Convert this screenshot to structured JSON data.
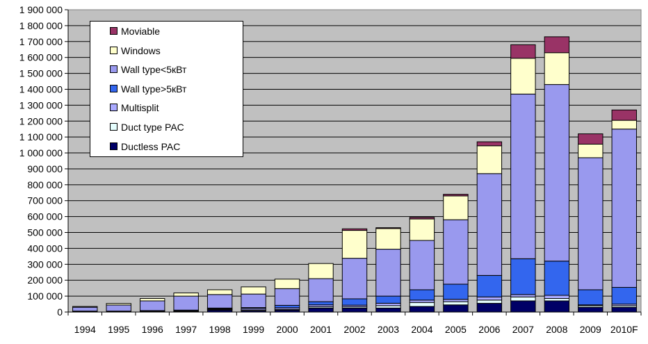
{
  "chart_data": {
    "type": "bar",
    "stacked": true,
    "categories": [
      "1994",
      "1995",
      "1996",
      "1997",
      "1998",
      "1999",
      "2000",
      "2001",
      "2002",
      "2003",
      "2004",
      "2005",
      "2006",
      "2007",
      "2008",
      "2009",
      "2010F"
    ],
    "ylim": [
      0,
      1900000
    ],
    "yticks": [
      "0",
      "100 000",
      "200 000",
      "300 000",
      "400 000",
      "500 000",
      "600 000",
      "700 000",
      "800 000",
      "900 000",
      "1 000 000",
      "1 100 000",
      "1 200 000",
      "1 300 000",
      "1 400 000",
      "1 500 000",
      "1 600 000",
      "1 700 000",
      "1 800 000",
      "1 900 000"
    ],
    "grid": true,
    "legend_position": "top-left",
    "series": [
      {
        "name": "Ductless PAC",
        "color": "#000066",
        "values": [
          2000,
          2000,
          3000,
          3000,
          12000,
          8000,
          12000,
          25000,
          25000,
          25000,
          35000,
          45000,
          55000,
          70000,
          70000,
          30000,
          30000
        ]
      },
      {
        "name": "Duct type PAC",
        "color": "#e6ffff",
        "values": [
          1000,
          1000,
          1000,
          1000,
          3000,
          5000,
          5000,
          8000,
          8000,
          15000,
          25000,
          20000,
          20000,
          25000,
          15000,
          10000,
          10000
        ]
      },
      {
        "name": "Multisplit",
        "color": "#aaaaff",
        "values": [
          1000,
          1000,
          2000,
          3000,
          5000,
          10000,
          10000,
          12000,
          10000,
          15000,
          15000,
          15000,
          20000,
          15000,
          20000,
          5000,
          10000
        ]
      },
      {
        "name": "Wall type>5кВт",
        "color": "#3366ee",
        "values": [
          2000,
          2000,
          3000,
          5000,
          5000,
          5000,
          15000,
          20000,
          40000,
          45000,
          65000,
          95000,
          135000,
          225000,
          215000,
          95000,
          105000
        ]
      },
      {
        "name": "Wall type<5кВт",
        "color": "#9999ee",
        "values": [
          24000,
          38000,
          61000,
          88000,
          85000,
          85000,
          105000,
          145000,
          255000,
          295000,
          310000,
          405000,
          640000,
          1035000,
          1110000,
          830000,
          995000
        ]
      },
      {
        "name": "Windows",
        "color": "#ffffcc",
        "values": [
          5000,
          10000,
          15000,
          20000,
          30000,
          45000,
          60000,
          95000,
          175000,
          130000,
          135000,
          150000,
          175000,
          225000,
          200000,
          85000,
          55000
        ]
      },
      {
        "name": "Moviable",
        "color": "#993366",
        "values": [
          0,
          0,
          0,
          0,
          0,
          0,
          0,
          0,
          10000,
          5000,
          10000,
          10000,
          25000,
          85000,
          100000,
          65000,
          65000
        ]
      }
    ]
  },
  "legend_order": [
    "Moviable",
    "Windows",
    "Wall type<5кВт",
    "Wall type>5кВт",
    "Multisplit",
    "Duct type PAC",
    "Ductless PAC"
  ]
}
